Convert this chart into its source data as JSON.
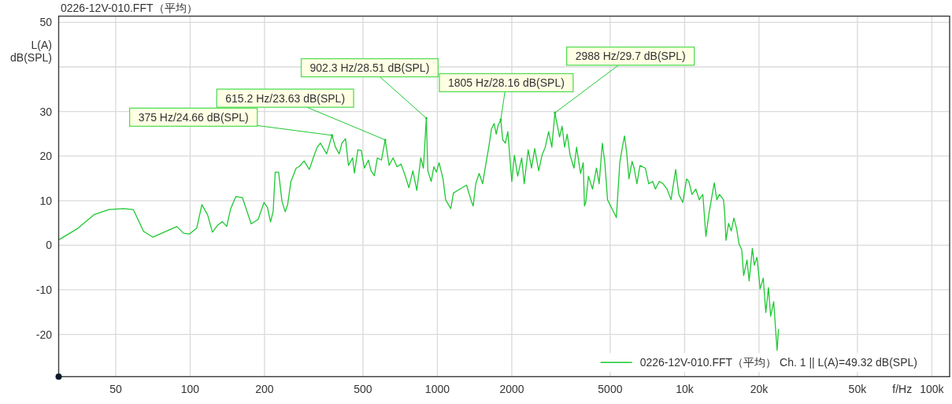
{
  "chart_data": {
    "type": "line",
    "title": "0226-12V-010.FFT（平均）",
    "ylabel": "L(A)\ndB(SPL)",
    "xlabel": "f/Hz",
    "log": "x",
    "xlim": [
      29.4,
      118000
    ],
    "ylim": [
      -29.5,
      51.4
    ],
    "xticks": [
      50,
      100,
      200,
      500,
      1000,
      2000,
      5000,
      {
        "value": 10000,
        "label": "10k"
      },
      {
        "value": 20000,
        "label": "20k"
      },
      {
        "value": 50000,
        "label": "50k"
      },
      {
        "value": 100000,
        "label": "100k"
      }
    ],
    "yticks": [
      50,
      {
        "value": 40,
        "label": null
      },
      30,
      20,
      10,
      0,
      -10,
      -20
    ],
    "grid": true,
    "legend": "bottom right",
    "x": [
      29.4,
      35.2,
      41.0,
      46.9,
      53.7,
      58.9,
      64.8,
      70.7,
      88.4,
      94.0,
      99.3,
      106.3,
      111.6,
      117.7,
      123.1,
      129.2,
      135.0,
      140.6,
      145.9,
      153.1,
      162.7,
      176.6,
      188.5,
      199.0,
      205.4,
      211.5,
      216.7,
      220.9,
      228.0,
      235.2,
      242.3,
      248.0,
      255.7,
      268.5,
      276.6,
      289.1,
      303.5,
      314.8,
      326.6,
      336.5,
      356.6,
      375,
      387,
      401,
      411,
      425,
      437,
      454,
      462,
      477,
      492,
      507,
      526,
      539,
      556,
      572,
      594,
      615.2,
      638,
      662,
      687,
      713,
      739,
      767,
      796,
      826,
      857,
      878,
      902.3,
      915,
      944,
      968,
      991,
      1016,
      1054,
      1080,
      1133,
      1161,
      1235,
      1313,
      1346,
      1377,
      1396,
      1430,
      1476,
      1524,
      1574,
      1614,
      1655,
      1697,
      1730,
      1756,
      1805,
      1837,
      1883,
      1927,
      1965,
      2000,
      2049,
      2113,
      2193,
      2245,
      2329,
      2404,
      2476,
      2569,
      2651,
      2731,
      2818,
      2903,
      2988,
      3046,
      3121,
      3195,
      3272,
      3350,
      3442,
      3570,
      3657,
      3795,
      3890,
      3935,
      3984,
      4084,
      4240,
      4400,
      4512,
      4647,
      4758,
      4878,
      5297,
      5467,
      5600,
      5713,
      5829,
      5954,
      6131,
      6250,
      6412,
      6600,
      6936,
      7159,
      7428,
      7622,
      7889,
      8185,
      8491,
      8810,
      9202,
      9472,
      9829,
      10190,
      10400,
      10710,
      11100,
      11460,
      11850,
      12190,
      12560,
      13180,
      13500,
      13840,
      14360,
      14520,
      14700,
      15060,
      15440,
      15820,
      16220,
      16610,
      17020,
      17330,
      17880,
      18240,
      18790,
      19150,
      19620,
      20200,
      20800,
      21300,
      21830,
      22280,
      22930,
      23390,
      23670,
      23960
    ],
    "series": [
      {
        "name": "0226-12V-010.FFT（平均） Ch. 1 || L(A)=49.32 dB(SPL)",
        "color": "#1ec832",
        "values": [
          1.2,
          3.8,
          6.9,
          8.0,
          8.2,
          8.0,
          3.1,
          1.8,
          4.2,
          2.7,
          2.5,
          3.8,
          9.1,
          6.8,
          2.9,
          4.5,
          5.3,
          4.2,
          8.2,
          10.9,
          10.7,
          4.8,
          5.8,
          9.6,
          8.5,
          5.2,
          7.6,
          16.4,
          16.4,
          9.9,
          7.5,
          9.1,
          14.3,
          17.3,
          17.7,
          18.9,
          17.0,
          19.6,
          22.0,
          22.9,
          20.5,
          24.66,
          22.0,
          20.5,
          22.9,
          23.9,
          17.9,
          19.6,
          16.2,
          21.4,
          21.3,
          17.3,
          19.1,
          16.7,
          15.6,
          19.6,
          19.1,
          23.63,
          17.9,
          19.6,
          17.6,
          18.2,
          15.8,
          12.9,
          16.7,
          12.3,
          19.6,
          17.3,
          28.51,
          16.7,
          14.3,
          17.6,
          16.4,
          18.5,
          14.9,
          10.2,
          8.2,
          11.7,
          12.6,
          13.5,
          11.4,
          9.6,
          8.8,
          13.8,
          16.1,
          13.8,
          18.5,
          22.0,
          26.1,
          27.3,
          24.9,
          26.7,
          28.16,
          23.7,
          22.9,
          25.5,
          19.6,
          14.3,
          20.2,
          15.5,
          19.6,
          13.8,
          21.4,
          17.3,
          21.7,
          16.7,
          20.2,
          22.0,
          25.5,
          22.0,
          29.7,
          27.3,
          24.3,
          26.7,
          22.0,
          24.9,
          20.2,
          17.3,
          22.0,
          16.1,
          18.5,
          8.8,
          9.6,
          15.5,
          12.6,
          17.3,
          13.8,
          22.9,
          18.5,
          10.2,
          6.2,
          18.5,
          22.0,
          24.5,
          20.8,
          14.9,
          18.8,
          17.3,
          13.8,
          17.9,
          17.3,
          13.8,
          14.3,
          12.6,
          14.3,
          13.8,
          12.6,
          10.2,
          17.0,
          11.4,
          9.6,
          14.9,
          14.3,
          11.4,
          12.6,
          10.2,
          11.4,
          2.0,
          7.3,
          14.0,
          10.2,
          11.4,
          10.2,
          7.3,
          1.1,
          4.9,
          3.2,
          6.1,
          3.8,
          0.2,
          -1.0,
          -6.8,
          -3.3,
          -8.0,
          -0.7,
          -4.5,
          -2.7,
          -9.8,
          -7.4,
          -15.1,
          -9.5,
          -15.9,
          -12.7,
          -19.8,
          -23.6,
          -18.9
        ]
      }
    ],
    "annotations": [
      {
        "text": "375 Hz/24.66 dB(SPL)",
        "x": 375,
        "y": 24.66
      },
      {
        "text": "615.2 Hz/23.63 dB(SPL)",
        "x": 615.2,
        "y": 23.63
      },
      {
        "text": "902.3 Hz/28.51 dB(SPL)",
        "x": 902.3,
        "y": 28.51
      },
      {
        "text": "1805 Hz/28.16 dB(SPL)",
        "x": 1805,
        "y": 28.16
      },
      {
        "text": "2988 Hz/29.7 dB(SPL)",
        "x": 2988,
        "y": 29.7
      }
    ]
  }
}
